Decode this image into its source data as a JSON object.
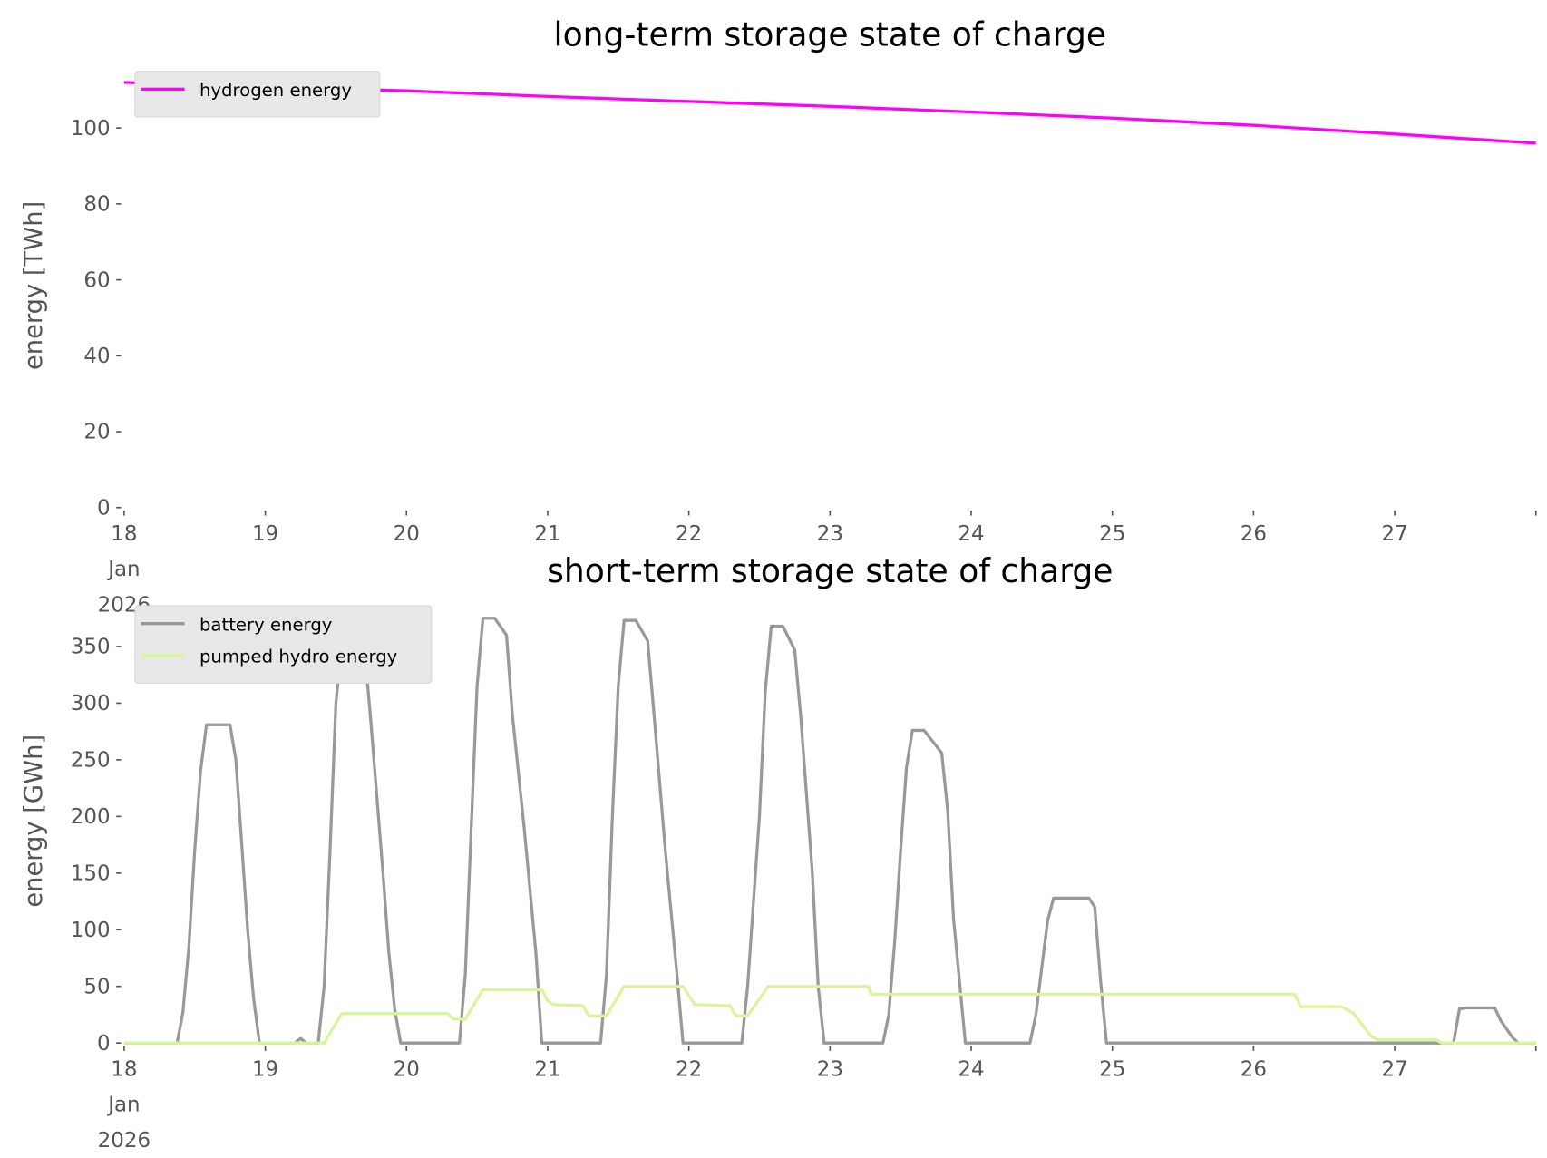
{
  "chart_data": [
    {
      "type": "line",
      "title": "long-term storage state of charge",
      "xlabel": "",
      "ylabel": "energy [TWh]",
      "xlim": [
        "2026-01-18 00:00",
        "2026-01-28 00:00"
      ],
      "ylim": [
        0,
        117
      ],
      "grid": false,
      "legend": "top-left",
      "x_ticks": [
        [
          "18",
          "Jan",
          "2026"
        ],
        [
          "19"
        ],
        [
          "20"
        ],
        [
          "21"
        ],
        [
          "22"
        ],
        [
          "23"
        ],
        [
          "24"
        ],
        [
          "25"
        ],
        [
          "26"
        ],
        [
          "27"
        ],
        [
          ""
        ]
      ],
      "y_ticks": [
        "0",
        "20",
        "40",
        "60",
        "80",
        "100"
      ],
      "series": [
        {
          "name": "hydrogen energy",
          "color": "#ff00ff",
          "points": [
            [
              "2026-01-18 00:00",
              112.0
            ],
            [
              "2026-01-19 00:00",
              110.8
            ],
            [
              "2026-01-20 00:00",
              109.8
            ],
            [
              "2026-01-21 00:00",
              108.3
            ],
            [
              "2026-01-22 00:00",
              107.0
            ],
            [
              "2026-01-23 00:00",
              105.7
            ],
            [
              "2026-01-24 00:00",
              104.2
            ],
            [
              "2026-01-25 00:00",
              102.6
            ],
            [
              "2026-01-26 00:00",
              100.7
            ],
            [
              "2026-01-27 00:00",
              98.4
            ],
            [
              "2026-01-28 00:00",
              96.0
            ]
          ]
        }
      ]
    },
    {
      "type": "line",
      "title": "short-term storage state of charge",
      "xlabel": "",
      "ylabel": "energy [GWh]",
      "xlim": [
        "2026-01-18 00:00",
        "2026-01-28 00:00"
      ],
      "ylim": [
        0,
        393
      ],
      "grid": false,
      "legend": "top-left",
      "x_ticks": [
        [
          "18",
          "Jan",
          "2026"
        ],
        [
          "19"
        ],
        [
          "20"
        ],
        [
          "21"
        ],
        [
          "22"
        ],
        [
          "23"
        ],
        [
          "24"
        ],
        [
          "25"
        ],
        [
          "26"
        ],
        [
          "27"
        ],
        [
          ""
        ]
      ],
      "y_ticks": [
        "0",
        "50",
        "100",
        "150",
        "200",
        "250",
        "300",
        "350"
      ],
      "series": [
        {
          "name": "battery energy",
          "color": "#999999",
          "points": [
            [
              "2026-01-18 00:00",
              0
            ],
            [
              "2026-01-18 09:00",
              0
            ],
            [
              "2026-01-18 10:00",
              27
            ],
            [
              "2026-01-18 11:00",
              85
            ],
            [
              "2026-01-18 12:00",
              170
            ],
            [
              "2026-01-18 13:00",
              240
            ],
            [
              "2026-01-18 14:00",
              281
            ],
            [
              "2026-01-18 18:00",
              281
            ],
            [
              "2026-01-18 19:00",
              250
            ],
            [
              "2026-01-18 20:00",
              175
            ],
            [
              "2026-01-18 21:00",
              100
            ],
            [
              "2026-01-18 22:00",
              40
            ],
            [
              "2026-01-18 23:00",
              0
            ],
            [
              "2026-01-19 05:00",
              0
            ],
            [
              "2026-01-19 06:00",
              4
            ],
            [
              "2026-01-19 07:00",
              0
            ],
            [
              "2026-01-19 09:00",
              0
            ],
            [
              "2026-01-19 10:00",
              50
            ],
            [
              "2026-01-19 11:00",
              170
            ],
            [
              "2026-01-19 12:00",
              300
            ],
            [
              "2026-01-19 13:00",
              352
            ],
            [
              "2026-01-19 16:00",
              352
            ],
            [
              "2026-01-19 17:00",
              340
            ],
            [
              "2026-01-19 18:00",
              280
            ],
            [
              "2026-01-19 20:00",
              150
            ],
            [
              "2026-01-19 21:00",
              80
            ],
            [
              "2026-01-19 22:00",
              30
            ],
            [
              "2026-01-19 23:00",
              0
            ],
            [
              "2026-01-20 09:00",
              0
            ],
            [
              "2026-01-20 10:00",
              60
            ],
            [
              "2026-01-20 11:00",
              190
            ],
            [
              "2026-01-20 12:00",
              315
            ],
            [
              "2026-01-20 13:00",
              375
            ],
            [
              "2026-01-20 15:00",
              375
            ],
            [
              "2026-01-20 17:00",
              360
            ],
            [
              "2026-01-20 18:00",
              290
            ],
            [
              "2026-01-20 20:00",
              190
            ],
            [
              "2026-01-20 22:00",
              80
            ],
            [
              "2026-01-20 23:00",
              0
            ],
            [
              "2026-01-21 09:00",
              0
            ],
            [
              "2026-01-21 10:00",
              60
            ],
            [
              "2026-01-21 11:00",
              200
            ],
            [
              "2026-01-21 12:00",
              315
            ],
            [
              "2026-01-21 13:00",
              373
            ],
            [
              "2026-01-21 15:00",
              373
            ],
            [
              "2026-01-21 17:00",
              355
            ],
            [
              "2026-01-21 18:00",
              295
            ],
            [
              "2026-01-21 20:00",
              170
            ],
            [
              "2026-01-21 22:00",
              60
            ],
            [
              "2026-01-21 23:00",
              0
            ],
            [
              "2026-01-22 09:00",
              0
            ],
            [
              "2026-01-22 10:00",
              50
            ],
            [
              "2026-01-22 12:00",
              200
            ],
            [
              "2026-01-22 13:00",
              310
            ],
            [
              "2026-01-22 14:00",
              368
            ],
            [
              "2026-01-22 16:00",
              368
            ],
            [
              "2026-01-22 18:00",
              347
            ],
            [
              "2026-01-22 19:00",
              290
            ],
            [
              "2026-01-22 21:00",
              150
            ],
            [
              "2026-01-22 22:00",
              50
            ],
            [
              "2026-01-22 23:00",
              0
            ],
            [
              "2026-01-23 09:00",
              0
            ],
            [
              "2026-01-23 10:00",
              25
            ],
            [
              "2026-01-23 11:00",
              90
            ],
            [
              "2026-01-23 12:00",
              170
            ],
            [
              "2026-01-23 13:00",
              243
            ],
            [
              "2026-01-23 14:00",
              276
            ],
            [
              "2026-01-23 16:00",
              276
            ],
            [
              "2026-01-23 19:00",
              256
            ],
            [
              "2026-01-23 20:00",
              205
            ],
            [
              "2026-01-23 21:00",
              110
            ],
            [
              "2026-01-23 23:00",
              0
            ],
            [
              "2026-01-24 10:00",
              0
            ],
            [
              "2026-01-24 11:00",
              25
            ],
            [
              "2026-01-24 13:00",
              108
            ],
            [
              "2026-01-24 14:00",
              128
            ],
            [
              "2026-01-24 20:00",
              128
            ],
            [
              "2026-01-24 21:00",
              120
            ],
            [
              "2026-01-24 22:00",
              55
            ],
            [
              "2026-01-24 23:00",
              0
            ],
            [
              "2026-01-27 10:00",
              0
            ],
            [
              "2026-01-27 11:00",
              30
            ],
            [
              "2026-01-27 12:00",
              31
            ],
            [
              "2026-01-27 17:00",
              31
            ],
            [
              "2026-01-27 18:00",
              20
            ],
            [
              "2026-01-27 20:00",
              5
            ],
            [
              "2026-01-27 21:00",
              0
            ],
            [
              "2026-01-28 00:00",
              0
            ]
          ]
        },
        {
          "name": "pumped hydro energy",
          "color": "#d9f59b",
          "points": [
            [
              "2026-01-18 00:00",
              0
            ],
            [
              "2026-01-19 10:00",
              0
            ],
            [
              "2026-01-19 13:00",
              26
            ],
            [
              "2026-01-20 07:00",
              26
            ],
            [
              "2026-01-20 08:00",
              21
            ],
            [
              "2026-01-20 10:00",
              21
            ],
            [
              "2026-01-20 13:00",
              47
            ],
            [
              "2026-01-20 23:00",
              47
            ],
            [
              "2026-01-21 00:00",
              37
            ],
            [
              "2026-01-21 01:00",
              34
            ],
            [
              "2026-01-21 06:00",
              33
            ],
            [
              "2026-01-21 07:00",
              24
            ],
            [
              "2026-01-21 10:00",
              24
            ],
            [
              "2026-01-21 13:00",
              50
            ],
            [
              "2026-01-21 23:00",
              50
            ],
            [
              "2026-01-22 01:00",
              34
            ],
            [
              "2026-01-22 07:00",
              33
            ],
            [
              "2026-01-22 08:00",
              24
            ],
            [
              "2026-01-22 10:00",
              24
            ],
            [
              "2026-01-22 13:30",
              50
            ],
            [
              "2026-01-23 06:30",
              50
            ],
            [
              "2026-01-23 07:00",
              43
            ],
            [
              "2026-01-26 07:00",
              43
            ],
            [
              "2026-01-26 08:00",
              32
            ],
            [
              "2026-01-26 15:00",
              32
            ],
            [
              "2026-01-26 17:00",
              26
            ],
            [
              "2026-01-26 20:00",
              6
            ],
            [
              "2026-01-26 21:00",
              3
            ],
            [
              "2026-01-27 07:00",
              3
            ],
            [
              "2026-01-27 08:00",
              0
            ],
            [
              "2026-01-28 00:00",
              0
            ]
          ]
        }
      ]
    }
  ]
}
